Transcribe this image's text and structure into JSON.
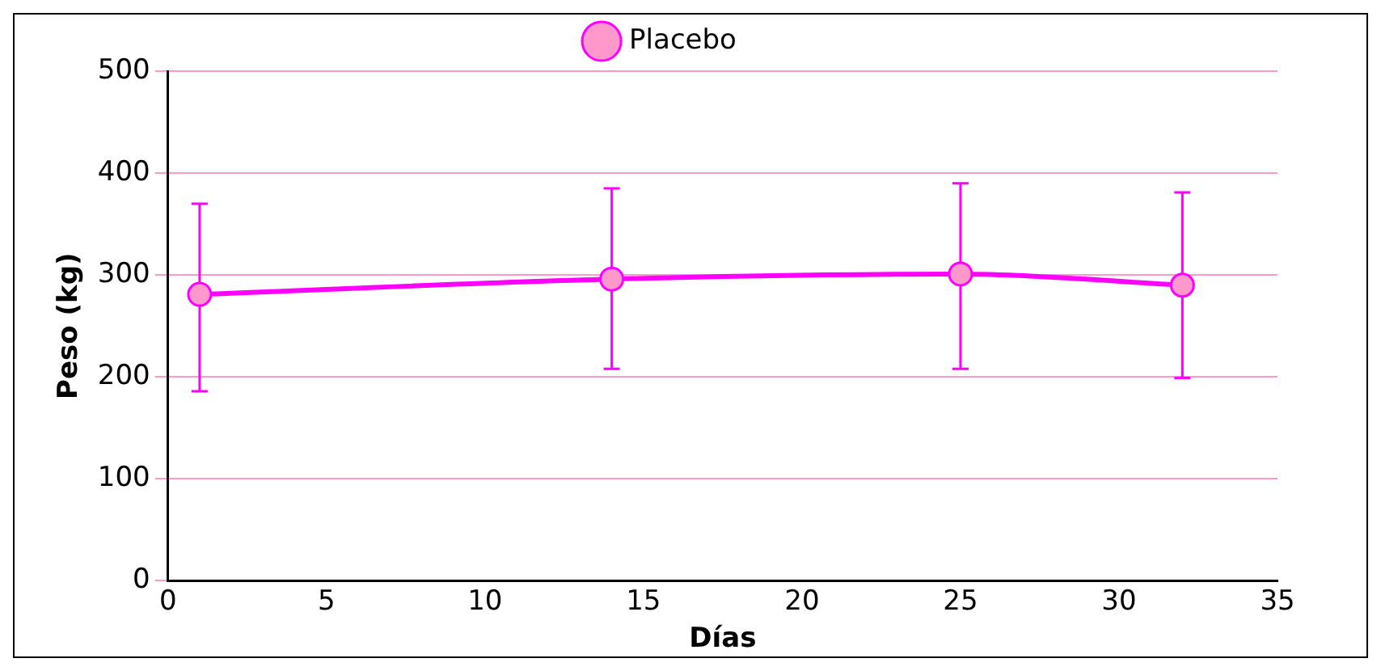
{
  "chart_data": {
    "type": "line",
    "xlabel": "Días",
    "ylabel": "Peso (kg)",
    "x": [
      1,
      14,
      25,
      32
    ],
    "series": [
      {
        "name": "Placebo",
        "color": "#ff00ff",
        "values": [
          281,
          296,
          301,
          290
        ],
        "errors": [
          [
            186,
            370
          ],
          [
            208,
            385
          ],
          [
            208,
            390
          ],
          [
            199,
            381
          ]
        ]
      }
    ],
    "xlim": [
      0,
      35
    ],
    "xticks": [
      0,
      5,
      10,
      15,
      20,
      25,
      30,
      35
    ],
    "ylim": [
      0,
      500
    ],
    "yticks": [
      0,
      100,
      200,
      300,
      400,
      500
    ],
    "grid": "y",
    "legend": "top",
    "marker": "circle",
    "line_style": "solid"
  }
}
